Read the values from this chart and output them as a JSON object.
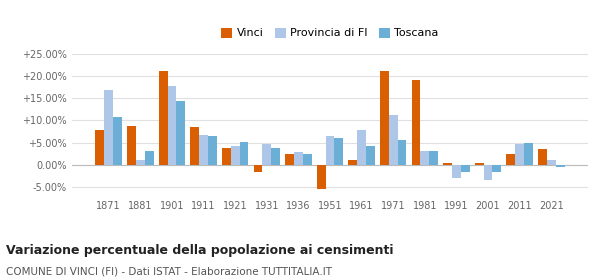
{
  "years": [
    1871,
    1881,
    1901,
    1911,
    1921,
    1931,
    1936,
    1951,
    1961,
    1971,
    1981,
    1991,
    2001,
    2011,
    2021
  ],
  "vinci": [
    7.8,
    8.8,
    21.2,
    8.5,
    3.7,
    -1.5,
    2.5,
    -5.5,
    1.0,
    21.2,
    19.0,
    0.5,
    0.5,
    2.5,
    3.5
  ],
  "provincia_fi": [
    16.8,
    1.2,
    17.7,
    6.7,
    4.3,
    4.8,
    2.8,
    6.5,
    7.8,
    11.2,
    3.2,
    -3.0,
    -3.5,
    4.8,
    1.2
  ],
  "toscana": [
    10.7,
    3.1,
    14.3,
    6.5,
    5.2,
    3.7,
    2.4,
    6.0,
    4.2,
    5.7,
    3.2,
    -1.6,
    -1.5,
    5.0,
    -0.5
  ],
  "vinci_color": "#d95f02",
  "provincia_color": "#aec6e8",
  "toscana_color": "#6baed6",
  "title": "Variazione percentuale della popolazione ai censimenti",
  "subtitle": "COMUNE DI VINCI (FI) - Dati ISTAT - Elaborazione TUTTITALIA.IT",
  "ylim": [
    -7,
    27
  ],
  "yticks": [
    -5,
    0,
    5,
    10,
    15,
    20,
    25
  ],
  "ytick_labels": [
    "-5.00%",
    "0.00%",
    "+5.00%",
    "+10.00%",
    "+15.00%",
    "+20.00%",
    "+25.00%"
  ],
  "bar_width": 0.28,
  "background_color": "#ffffff",
  "grid_color": "#e0e0e0"
}
